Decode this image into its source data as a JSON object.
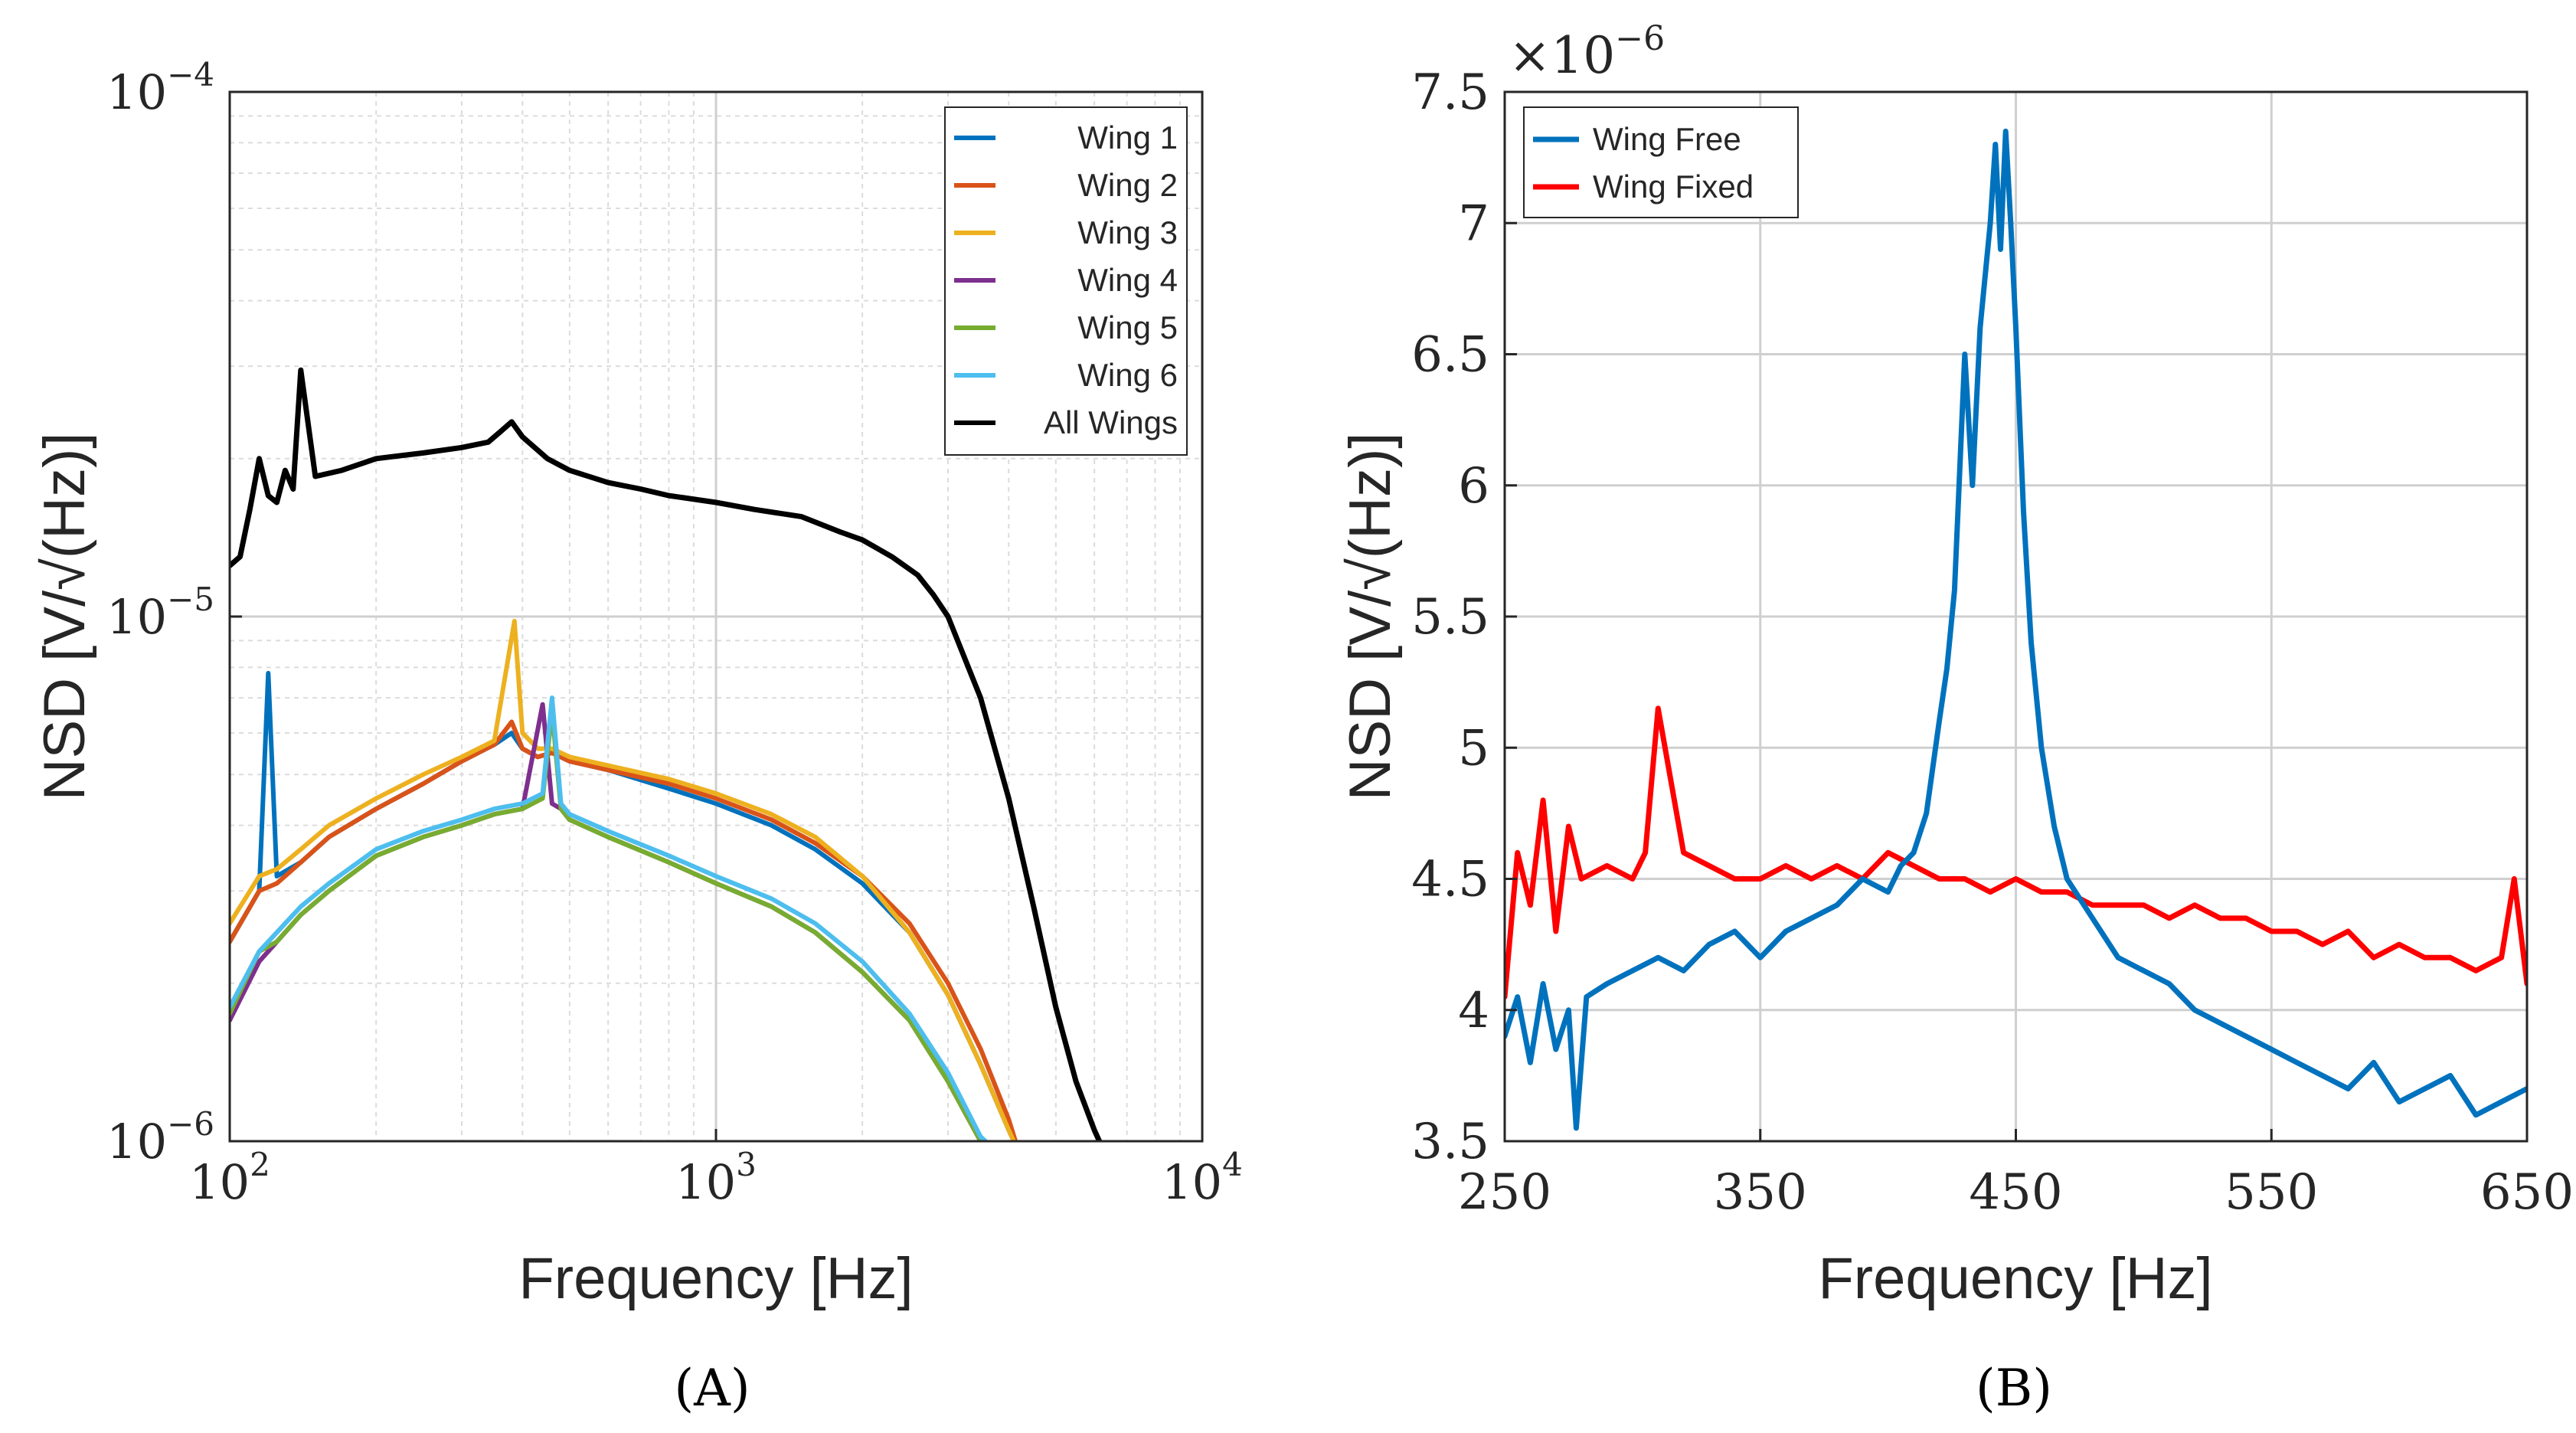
{
  "chart_data": [
    {
      "type": "line",
      "caption": "(A)",
      "xlabel": "Frequency [Hz]",
      "ylabel": "NSD [V/√(Hz)]",
      "xscale": "log",
      "yscale": "log",
      "xlim": [
        100,
        10000
      ],
      "ylim": [
        1e-06,
        0.0001
      ],
      "x_ticks": [
        {
          "base": "10",
          "exp": "2"
        },
        {
          "base": "10",
          "exp": "3"
        },
        {
          "base": "10",
          "exp": "4"
        }
      ],
      "y_ticks": [
        {
          "base": "10",
          "exp": "−6"
        },
        {
          "base": "10",
          "exp": "−5"
        },
        {
          "base": "10",
          "exp": "−4"
        }
      ],
      "grid": true,
      "minor_grid": true,
      "legend_position": "top-right",
      "series": [
        {
          "name": "Wing 1",
          "color": "#0072BD",
          "x": [
            100,
            115,
            120,
            125,
            140,
            160,
            200,
            250,
            300,
            350,
            380,
            400,
            430,
            460,
            500,
            600,
            800,
            1000,
            1300,
            1600,
            2000,
            2500,
            3000,
            3500,
            4000,
            4200
          ],
          "y": [
            2.4e-06,
            3e-06,
            7.8e-06,
            3.2e-06,
            3.4e-06,
            3.8e-06,
            4.3e-06,
            4.8e-06,
            5.3e-06,
            5.7e-06,
            6e-06,
            5.6e-06,
            5.4e-06,
            5.5e-06,
            5.3e-06,
            5.1e-06,
            4.7e-06,
            4.4e-06,
            4e-06,
            3.6e-06,
            3.1e-06,
            2.5e-06,
            1.9e-06,
            1.4e-06,
            1.05e-06,
            9.5e-07
          ]
        },
        {
          "name": "Wing 2",
          "color": "#D95319",
          "x": [
            100,
            115,
            125,
            140,
            160,
            200,
            250,
            300,
            350,
            380,
            400,
            430,
            460,
            500,
            600,
            800,
            1000,
            1300,
            1600,
            2000,
            2500,
            3000,
            3500,
            4000,
            4200
          ],
          "y": [
            2.4e-06,
            3e-06,
            3.1e-06,
            3.4e-06,
            3.8e-06,
            4.3e-06,
            4.8e-06,
            5.3e-06,
            5.7e-06,
            6.3e-06,
            5.6e-06,
            5.4e-06,
            5.5e-06,
            5.3e-06,
            5.1e-06,
            4.8e-06,
            4.5e-06,
            4.1e-06,
            3.7e-06,
            3.2e-06,
            2.6e-06,
            2e-06,
            1.5e-06,
            1.1e-06,
            9.5e-07
          ]
        },
        {
          "name": "Wing 3",
          "color": "#EDB120",
          "x": [
            100,
            115,
            125,
            140,
            160,
            200,
            250,
            300,
            350,
            385,
            400,
            430,
            460,
            500,
            600,
            800,
            1000,
            1300,
            1600,
            2000,
            2500,
            3000,
            3500,
            4000,
            4200
          ],
          "y": [
            2.6e-06,
            3.2e-06,
            3.3e-06,
            3.6e-06,
            4e-06,
            4.5e-06,
            5e-06,
            5.4e-06,
            5.8e-06,
            9.8e-06,
            6e-06,
            5.6e-06,
            5.6e-06,
            5.4e-06,
            5.2e-06,
            4.9e-06,
            4.6e-06,
            4.2e-06,
            3.8e-06,
            3.2e-06,
            2.5e-06,
            1.9e-06,
            1.4e-06,
            1.05e-06,
            9.5e-07
          ]
        },
        {
          "name": "Wing 4",
          "color": "#7E2F8E",
          "x": [
            100,
            115,
            125,
            140,
            160,
            200,
            250,
            300,
            350,
            400,
            440,
            460,
            480,
            500,
            600,
            800,
            1000,
            1300,
            1600,
            2000,
            2500,
            3000,
            3500,
            3800
          ],
          "y": [
            1.7e-06,
            2.2e-06,
            2.4e-06,
            2.7e-06,
            3e-06,
            3.5e-06,
            3.8e-06,
            4e-06,
            4.2e-06,
            4.3e-06,
            6.8e-06,
            4.4e-06,
            4.3e-06,
            4.1e-06,
            3.8e-06,
            3.4e-06,
            3.1e-06,
            2.8e-06,
            2.5e-06,
            2.1e-06,
            1.7e-06,
            1.3e-06,
            1e-06,
            9.5e-07
          ]
        },
        {
          "name": "Wing 5",
          "color": "#77AC30",
          "x": [
            100,
            115,
            125,
            140,
            160,
            200,
            250,
            300,
            350,
            400,
            440,
            460,
            480,
            500,
            600,
            800,
            1000,
            1300,
            1600,
            2000,
            2500,
            3000,
            3500,
            3800
          ],
          "y": [
            1.75e-06,
            2.3e-06,
            2.4e-06,
            2.7e-06,
            3e-06,
            3.5e-06,
            3.8e-06,
            4e-06,
            4.2e-06,
            4.3e-06,
            4.5e-06,
            6.6e-06,
            4.3e-06,
            4.1e-06,
            3.8e-06,
            3.4e-06,
            3.1e-06,
            2.8e-06,
            2.5e-06,
            2.1e-06,
            1.7e-06,
            1.3e-06,
            1e-06,
            9.5e-07
          ]
        },
        {
          "name": "Wing 6",
          "color": "#4DBEEE",
          "x": [
            100,
            115,
            125,
            140,
            160,
            200,
            250,
            300,
            350,
            400,
            440,
            460,
            480,
            500,
            600,
            800,
            1000,
            1300,
            1600,
            2000,
            2500,
            3000,
            3500,
            3800
          ],
          "y": [
            1.8e-06,
            2.3e-06,
            2.5e-06,
            2.8e-06,
            3.1e-06,
            3.6e-06,
            3.9e-06,
            4.1e-06,
            4.3e-06,
            4.4e-06,
            4.6e-06,
            7e-06,
            4.4e-06,
            4.2e-06,
            3.9e-06,
            3.5e-06,
            3.2e-06,
            2.9e-06,
            2.6e-06,
            2.2e-06,
            1.75e-06,
            1.35e-06,
            1.02e-06,
            9.5e-07
          ]
        },
        {
          "name": "All Wings",
          "color": "#000000",
          "x": [
            100,
            105,
            110,
            115,
            120,
            125,
            130,
            135,
            140,
            150,
            170,
            200,
            250,
            300,
            340,
            360,
            380,
            400,
            450,
            500,
            600,
            700,
            800,
            1000,
            1200,
            1500,
            1800,
            2000,
            2300,
            2600,
            2800,
            3000,
            3500,
            4000,
            4500,
            5000,
            5500,
            6000,
            6300
          ],
          "y": [
            1.25e-05,
            1.3e-05,
            1.6e-05,
            2e-05,
            1.7e-05,
            1.65e-05,
            1.9e-05,
            1.75e-05,
            2.95e-05,
            1.85e-05,
            1.9e-05,
            2e-05,
            2.05e-05,
            2.1e-05,
            2.15e-05,
            2.25e-05,
            2.35e-05,
            2.2e-05,
            2e-05,
            1.9e-05,
            1.8e-05,
            1.75e-05,
            1.7e-05,
            1.65e-05,
            1.6e-05,
            1.55e-05,
            1.45e-05,
            1.4e-05,
            1.3e-05,
            1.2e-05,
            1.1e-05,
            1e-05,
            7e-06,
            4.5e-06,
            2.8e-06,
            1.8e-06,
            1.3e-06,
            1.05e-06,
            9.5e-07
          ]
        }
      ]
    },
    {
      "type": "line",
      "caption": "(B)",
      "xlabel": "Frequency [Hz]",
      "ylabel": "NSD [V/√(Hz)]",
      "xscale": "linear",
      "yscale": "linear",
      "y_multiplier": {
        "base": "×10",
        "exp": "−6"
      },
      "xlim": [
        250,
        650
      ],
      "ylim": [
        3.5,
        7.5
      ],
      "x_ticks": [
        "250",
        "350",
        "450",
        "550",
        "650"
      ],
      "y_ticks": [
        "3.5",
        "4",
        "4.5",
        "5",
        "5.5",
        "6",
        "6.5",
        "7",
        "7.5"
      ],
      "grid": true,
      "legend_position": "top-left",
      "series": [
        {
          "name": "Wing Free",
          "color": "#0072BD",
          "x": [
            250,
            255,
            260,
            265,
            270,
            275,
            278,
            282,
            290,
            300,
            310,
            320,
            330,
            340,
            350,
            360,
            370,
            380,
            390,
            400,
            405,
            410,
            415,
            420,
            423,
            426,
            430,
            433,
            436,
            440,
            442,
            444,
            446,
            448,
            450,
            453,
            456,
            460,
            465,
            470,
            480,
            490,
            500,
            510,
            520,
            530,
            540,
            550,
            560,
            570,
            580,
            590,
            600,
            610,
            620,
            630,
            640,
            650
          ],
          "y": [
            3.9,
            4.05,
            3.8,
            4.1,
            3.85,
            4.0,
            3.55,
            4.05,
            4.1,
            4.15,
            4.2,
            4.15,
            4.25,
            4.3,
            4.2,
            4.3,
            4.35,
            4.4,
            4.5,
            4.45,
            4.55,
            4.6,
            4.75,
            5.1,
            5.3,
            5.6,
            6.5,
            6.0,
            6.6,
            7.0,
            7.3,
            6.9,
            7.35,
            7.0,
            6.6,
            5.9,
            5.4,
            5.0,
            4.7,
            4.5,
            4.35,
            4.2,
            4.15,
            4.1,
            4.0,
            3.95,
            3.9,
            3.85,
            3.8,
            3.75,
            3.7,
            3.8,
            3.65,
            3.7,
            3.75,
            3.6,
            3.65,
            3.7
          ]
        },
        {
          "name": "Wing Fixed",
          "color": "#FF0000",
          "x": [
            250,
            255,
            260,
            265,
            270,
            275,
            280,
            290,
            300,
            305,
            310,
            320,
            330,
            340,
            350,
            360,
            370,
            380,
            390,
            400,
            410,
            420,
            430,
            440,
            450,
            460,
            470,
            480,
            490,
            500,
            510,
            520,
            530,
            540,
            550,
            560,
            570,
            580,
            590,
            600,
            610,
            620,
            630,
            640,
            645,
            650
          ],
          "y": [
            4.05,
            4.6,
            4.4,
            4.8,
            4.3,
            4.7,
            4.5,
            4.55,
            4.5,
            4.6,
            5.15,
            4.6,
            4.55,
            4.5,
            4.5,
            4.55,
            4.5,
            4.55,
            4.5,
            4.6,
            4.55,
            4.5,
            4.5,
            4.45,
            4.5,
            4.45,
            4.45,
            4.4,
            4.4,
            4.4,
            4.35,
            4.4,
            4.35,
            4.35,
            4.3,
            4.3,
            4.25,
            4.3,
            4.2,
            4.25,
            4.2,
            4.2,
            4.15,
            4.2,
            4.5,
            4.1
          ]
        }
      ]
    }
  ]
}
